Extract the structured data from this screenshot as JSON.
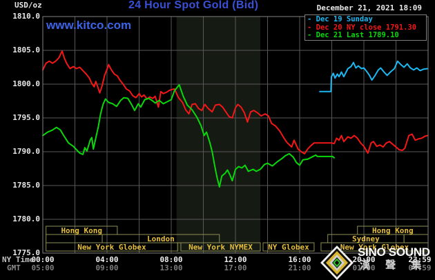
{
  "chart": {
    "title": "24 Hour Spot Gold (Bid)",
    "watermark": "www.kitco.com",
    "unit_label": "USD/oz",
    "datetime": "December 21, 2021 18:09",
    "ny_time_label": "NY Time",
    "gmt_label": "GMT"
  },
  "legend": [
    {
      "marker": "-",
      "label": "Dec 19 Sunday",
      "color": "#1cb8f2"
    },
    {
      "marker": "-",
      "label": "Dec 20 NY close 1791.30",
      "color": "#f21818"
    },
    {
      "marker": "-",
      "label": "Dec 21 Last 1789.10",
      "color": "#0ad80a"
    }
  ],
  "branding": {
    "name": "SINO SOUND",
    "chinese": "漢 聲 集 團"
  },
  "colors": {
    "title_blue": "#3a50d6",
    "kitco_blue": "#3d64e6",
    "grid": "#585858",
    "frame": "#828282",
    "nymex_band": "#151a13",
    "session_border": "#8e8e52",
    "session_text": "#e5bf3e",
    "background": "#000000"
  },
  "chart_data": {
    "type": "line",
    "title": "24 Hour Spot Gold (Bid)",
    "ylabel": "USD/oz",
    "ylim": [
      1775,
      1810
    ],
    "xlim_hours": [
      0,
      24
    ],
    "grid": {
      "x_step_hours": 2,
      "y_step": 5,
      "on": true
    },
    "legend_position": "top-right",
    "y_ticks": [
      {
        "v": 1810,
        "label": "1810.0"
      },
      {
        "v": 1805,
        "label": "1805.0"
      },
      {
        "v": 1800,
        "label": "1800.0"
      },
      {
        "v": 1795,
        "label": "1795.0"
      },
      {
        "v": 1790,
        "label": "1790.0"
      },
      {
        "v": 1785,
        "label": "1785.0"
      },
      {
        "v": 1780,
        "label": "1780.0"
      },
      {
        "v": 1775,
        "label": "1775.0"
      }
    ],
    "x_ticks": [
      {
        "h": 0,
        "ny": "00:00",
        "gmt": "05:00"
      },
      {
        "h": 4,
        "ny": "04:00",
        "gmt": "09:00"
      },
      {
        "h": 8,
        "ny": "08:00",
        "gmt": "13:00"
      },
      {
        "h": 12,
        "ny": "12:00",
        "gmt": "17:00"
      },
      {
        "h": 16,
        "ny": "16:00",
        "gmt": "21:00"
      },
      {
        "h": 20,
        "ny": "20:00",
        "gmt": "01:00"
      },
      {
        "h": 23.48,
        "ny": "23:59",
        "gmt": "04:59"
      }
    ],
    "nymex_band_hours": [
      8.33,
      13.55
    ],
    "sessions": [
      {
        "row": 1,
        "label": "Hong Kong",
        "start_h": 0.2,
        "end_h": 4.64
      },
      {
        "row": 1,
        "label": "Hong Kong",
        "start_h": 19.6,
        "end_h": 24
      },
      {
        "row": 2,
        "label": "",
        "start_h": 0.2,
        "end_h": 3.7
      },
      {
        "row": 2,
        "label": "London",
        "start_h": 3.7,
        "end_h": 11.0
      },
      {
        "row": 2,
        "label": "Sydney",
        "start_h": 17.75,
        "end_h": 22.5
      },
      {
        "row": 2,
        "label": "",
        "start_h": 22.5,
        "end_h": 24
      },
      {
        "row": 3,
        "label": "New York Globex",
        "start_h": 0.2,
        "end_h": 8.4
      },
      {
        "row": 3,
        "label": "New York NYMEX",
        "start_h": 8.6,
        "end_h": 13.55
      },
      {
        "row": 3,
        "label": "NY Globex",
        "start_h": 13.72,
        "end_h": 16.9
      },
      {
        "row": 3,
        "label": "New York Globex",
        "start_h": 17.33,
        "end_h": 24
      }
    ],
    "series": [
      {
        "name": "Dec 19 Sunday",
        "color": "#1cb8f2",
        "points": [
          [
            17.25,
            1798.9
          ],
          [
            17.95,
            1798.9
          ],
          [
            17.98,
            1801.1
          ],
          [
            18.1,
            1801.6
          ],
          [
            18.2,
            1800.9
          ],
          [
            18.35,
            1801.5
          ],
          [
            18.45,
            1801.1
          ],
          [
            18.6,
            1801.8
          ],
          [
            18.75,
            1801.1
          ],
          [
            19.0,
            1802.3
          ],
          [
            19.2,
            1802.6
          ],
          [
            19.35,
            1803.2
          ],
          [
            19.5,
            1802.4
          ],
          [
            19.65,
            1802.7
          ],
          [
            19.85,
            1802.3
          ],
          [
            20.0,
            1802.4
          ],
          [
            20.2,
            1801.8
          ],
          [
            20.35,
            1801.3
          ],
          [
            20.5,
            1800.6
          ],
          [
            20.7,
            1801.3
          ],
          [
            20.9,
            1802.1
          ],
          [
            21.05,
            1802.4
          ],
          [
            21.25,
            1801.8
          ],
          [
            21.45,
            1801.3
          ],
          [
            21.65,
            1801.8
          ],
          [
            21.9,
            1802.3
          ],
          [
            22.1,
            1803.4
          ],
          [
            22.3,
            1802.9
          ],
          [
            22.5,
            1802.5
          ],
          [
            22.7,
            1803.0
          ],
          [
            22.9,
            1802.4
          ],
          [
            23.1,
            1802.1
          ],
          [
            23.3,
            1802.4
          ],
          [
            23.5,
            1802.0
          ],
          [
            23.7,
            1802.2
          ],
          [
            23.98,
            1802.3
          ]
        ]
      },
      {
        "name": "Dec 20",
        "color": "#f21818",
        "points": [
          [
            0,
            1802.1
          ],
          [
            0.2,
            1803.1
          ],
          [
            0.4,
            1803.4
          ],
          [
            0.6,
            1803.1
          ],
          [
            0.8,
            1803.4
          ],
          [
            1.0,
            1803.9
          ],
          [
            1.2,
            1804.9
          ],
          [
            1.35,
            1803.8
          ],
          [
            1.5,
            1803.0
          ],
          [
            1.7,
            1802.3
          ],
          [
            1.9,
            1802.6
          ],
          [
            2.1,
            1802.3
          ],
          [
            2.3,
            1802.5
          ],
          [
            2.5,
            1802.0
          ],
          [
            2.7,
            1801.5
          ],
          [
            2.9,
            1800.9
          ],
          [
            3.05,
            1800.1
          ],
          [
            3.2,
            1799.6
          ],
          [
            3.3,
            1800.4
          ],
          [
            3.45,
            1799.4
          ],
          [
            3.55,
            1798.7
          ],
          [
            3.7,
            1799.8
          ],
          [
            3.85,
            1801.3
          ],
          [
            4.0,
            1802.2
          ],
          [
            4.1,
            1802.9
          ],
          [
            4.25,
            1802.2
          ],
          [
            4.45,
            1801.5
          ],
          [
            4.65,
            1801.2
          ],
          [
            4.8,
            1800.6
          ],
          [
            5.0,
            1800.0
          ],
          [
            5.2,
            1799.3
          ],
          [
            5.4,
            1799.0
          ],
          [
            5.6,
            1798.3
          ],
          [
            5.8,
            1798.0
          ],
          [
            6.0,
            1798.6
          ],
          [
            6.15,
            1798.1
          ],
          [
            6.3,
            1798.4
          ],
          [
            6.5,
            1797.8
          ],
          [
            6.65,
            1798.1
          ],
          [
            6.85,
            1797.9
          ],
          [
            7.0,
            1798.2
          ],
          [
            7.2,
            1796.6
          ],
          [
            7.35,
            1798.9
          ],
          [
            7.5,
            1798.6
          ],
          [
            7.7,
            1798.8
          ],
          [
            7.9,
            1799.1
          ],
          [
            8.2,
            1799.3
          ],
          [
            8.45,
            1798.0
          ],
          [
            8.7,
            1797.3
          ],
          [
            8.9,
            1796.2
          ],
          [
            9.1,
            1795.6
          ],
          [
            9.3,
            1797.0
          ],
          [
            9.5,
            1797.1
          ],
          [
            9.7,
            1796.4
          ],
          [
            9.9,
            1796.1
          ],
          [
            10.1,
            1797.0
          ],
          [
            10.3,
            1796.4
          ],
          [
            10.55,
            1795.9
          ],
          [
            10.75,
            1796.9
          ],
          [
            11.0,
            1797.0
          ],
          [
            11.2,
            1796.6
          ],
          [
            11.4,
            1795.9
          ],
          [
            11.6,
            1795.2
          ],
          [
            11.8,
            1795.0
          ],
          [
            12.0,
            1796.5
          ],
          [
            12.15,
            1797.0
          ],
          [
            12.35,
            1796.6
          ],
          [
            12.55,
            1795.8
          ],
          [
            12.75,
            1794.4
          ],
          [
            12.95,
            1795.9
          ],
          [
            13.15,
            1796.1
          ],
          [
            13.4,
            1795.7
          ],
          [
            13.6,
            1795.3
          ],
          [
            13.85,
            1795.6
          ],
          [
            14.05,
            1795.3
          ],
          [
            14.25,
            1794.2
          ],
          [
            14.5,
            1793.8
          ],
          [
            14.75,
            1793.1
          ],
          [
            15.0,
            1792.1
          ],
          [
            15.2,
            1791.4
          ],
          [
            15.5,
            1790.7
          ],
          [
            15.65,
            1791.7
          ],
          [
            15.9,
            1790.4
          ],
          [
            16.1,
            1790.0
          ],
          [
            16.3,
            1789.7
          ],
          [
            16.5,
            1790.4
          ],
          [
            16.7,
            1790.9
          ],
          [
            16.9,
            1791.3
          ],
          [
            17.05,
            1791.3
          ],
          [
            18.0,
            1791.3
          ],
          [
            18.15,
            1791.2
          ],
          [
            18.3,
            1792.0
          ],
          [
            18.45,
            1791.7
          ],
          [
            18.6,
            1792.4
          ],
          [
            18.75,
            1791.5
          ],
          [
            19.0,
            1792.2
          ],
          [
            19.2,
            1792.0
          ],
          [
            19.4,
            1792.4
          ],
          [
            19.6,
            1792.0
          ],
          [
            19.8,
            1791.3
          ],
          [
            20.0,
            1790.8
          ],
          [
            20.15,
            1790.2
          ],
          [
            20.25,
            1789.8
          ],
          [
            20.45,
            1791.3
          ],
          [
            20.6,
            1791.5
          ],
          [
            20.8,
            1790.8
          ],
          [
            21.0,
            1791.0
          ],
          [
            21.2,
            1790.7
          ],
          [
            21.4,
            1791.3
          ],
          [
            21.6,
            1791.5
          ],
          [
            21.8,
            1791.1
          ],
          [
            22.0,
            1790.7
          ],
          [
            22.2,
            1790.3
          ],
          [
            22.4,
            1790.2
          ],
          [
            22.55,
            1790.5
          ],
          [
            22.8,
            1792.4
          ],
          [
            23.0,
            1792.6
          ],
          [
            23.2,
            1791.7
          ],
          [
            23.4,
            1791.9
          ],
          [
            23.6,
            1792.0
          ],
          [
            23.8,
            1792.3
          ],
          [
            23.98,
            1792.4
          ]
        ]
      },
      {
        "name": "Dec 21",
        "color": "#0ad80a",
        "points": [
          [
            0,
            1792.4
          ],
          [
            0.3,
            1792.9
          ],
          [
            0.6,
            1793.2
          ],
          [
            0.85,
            1793.6
          ],
          [
            1.1,
            1793.2
          ],
          [
            1.3,
            1792.4
          ],
          [
            1.6,
            1791.3
          ],
          [
            1.9,
            1790.8
          ],
          [
            2.1,
            1790.3
          ],
          [
            2.3,
            1789.8
          ],
          [
            2.5,
            1789.6
          ],
          [
            2.62,
            1790.6
          ],
          [
            2.75,
            1790.1
          ],
          [
            2.95,
            1791.7
          ],
          [
            3.05,
            1792.1
          ],
          [
            3.15,
            1790.4
          ],
          [
            3.3,
            1792.0
          ],
          [
            3.45,
            1793.6
          ],
          [
            3.6,
            1795.6
          ],
          [
            3.75,
            1797.0
          ],
          [
            3.9,
            1797.8
          ],
          [
            4.1,
            1797.3
          ],
          [
            4.35,
            1797.1
          ],
          [
            4.6,
            1796.7
          ],
          [
            4.85,
            1797.6
          ],
          [
            5.05,
            1798.0
          ],
          [
            5.3,
            1797.9
          ],
          [
            5.55,
            1796.9
          ],
          [
            5.72,
            1796.1
          ],
          [
            5.95,
            1797.1
          ],
          [
            6.1,
            1796.6
          ],
          [
            6.35,
            1797.7
          ],
          [
            6.6,
            1797.9
          ],
          [
            6.8,
            1797.6
          ],
          [
            7.0,
            1797.2
          ],
          [
            7.25,
            1797.6
          ],
          [
            7.5,
            1797.1
          ],
          [
            7.75,
            1797.4
          ],
          [
            8.0,
            1797.7
          ],
          [
            8.2,
            1799.0
          ],
          [
            8.5,
            1799.9
          ],
          [
            8.75,
            1798.2
          ],
          [
            9.0,
            1796.9
          ],
          [
            9.3,
            1796.2
          ],
          [
            9.6,
            1795.1
          ],
          [
            9.85,
            1793.9
          ],
          [
            10.05,
            1792.4
          ],
          [
            10.2,
            1792.9
          ],
          [
            10.4,
            1791.4
          ],
          [
            10.55,
            1790.0
          ],
          [
            10.7,
            1788.0
          ],
          [
            10.85,
            1786.2
          ],
          [
            11.0,
            1784.8
          ],
          [
            11.15,
            1786.4
          ],
          [
            11.35,
            1786.8
          ],
          [
            11.5,
            1787.3
          ],
          [
            11.65,
            1786.6
          ],
          [
            11.8,
            1785.7
          ],
          [
            12.0,
            1787.4
          ],
          [
            12.2,
            1787.8
          ],
          [
            12.4,
            1787.6
          ],
          [
            12.6,
            1788.0
          ],
          [
            12.8,
            1787.1
          ],
          [
            13.1,
            1787.4
          ],
          [
            13.3,
            1787.1
          ],
          [
            13.55,
            1787.4
          ],
          [
            13.8,
            1788.1
          ],
          [
            14.0,
            1788.3
          ],
          [
            14.3,
            1787.9
          ],
          [
            14.6,
            1788.5
          ],
          [
            14.9,
            1789.0
          ],
          [
            15.1,
            1789.4
          ],
          [
            15.35,
            1789.7
          ],
          [
            15.6,
            1789.2
          ],
          [
            15.8,
            1788.4
          ],
          [
            16.0,
            1788.0
          ],
          [
            16.2,
            1788.8
          ],
          [
            16.5,
            1788.9
          ],
          [
            16.75,
            1789.2
          ],
          [
            17.0,
            1789.5
          ],
          [
            17.1,
            1789.3
          ],
          [
            18.05,
            1789.3
          ],
          [
            18.15,
            1789.1
          ]
        ]
      }
    ]
  }
}
